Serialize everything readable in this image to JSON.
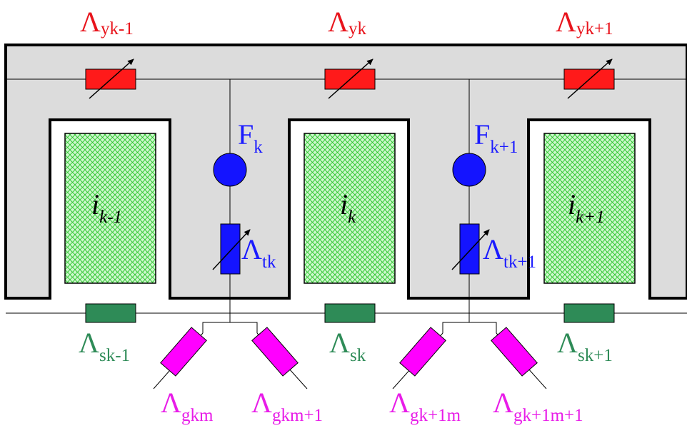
{
  "colors": {
    "yoke_resistor": "#e8141c",
    "tooth_resistor": "#1a1aff",
    "mmf_source": "#1a1aff",
    "slot_resistor": "#2e8b57",
    "gap_resistor": "#ff00ff",
    "winding_hatch": "#1ec21e",
    "winding_fill": "#cdf7cd",
    "iron_fill": "#dcdcdc"
  },
  "labels": {
    "yoke": [
      {
        "main": "Λ",
        "sub": "yk-1"
      },
      {
        "main": "Λ",
        "sub": "yk"
      },
      {
        "main": "Λ",
        "sub": "yk+1"
      }
    ],
    "mmf": [
      {
        "main": "F",
        "sub": "k"
      },
      {
        "main": "F",
        "sub": "k+1"
      }
    ],
    "tooth": [
      {
        "main": "Λ",
        "sub": "tk"
      },
      {
        "main": "Λ",
        "sub": "tk+1"
      }
    ],
    "slot_leak": [
      {
        "main": "Λ",
        "sub": "sk-1"
      },
      {
        "main": "Λ",
        "sub": "sk"
      },
      {
        "main": "Λ",
        "sub": "sk+1"
      }
    ],
    "gap": [
      {
        "main": "Λ",
        "sub": "gkm"
      },
      {
        "main": "Λ",
        "sub": "gkm+1"
      },
      {
        "main": "Λ",
        "sub": "gk+1m"
      },
      {
        "main": "Λ",
        "sub": "gk+1m+1"
      }
    ],
    "currents": [
      {
        "main": "i",
        "sub": "k-1"
      },
      {
        "main": "i",
        "sub": "k"
      },
      {
        "main": "i",
        "sub": "k+1"
      }
    ]
  }
}
